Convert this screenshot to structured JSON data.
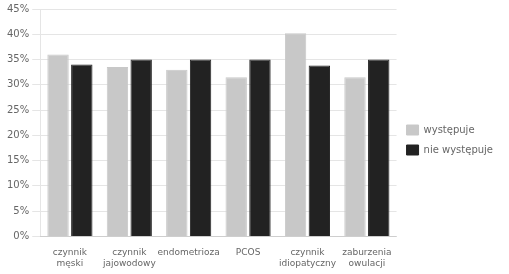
{
  "chart_data": {
    "type": "bar",
    "categories": [
      "czynnik męski",
      "czynnik jajowodowy",
      "endometrioza",
      "PCOS",
      "czynnik idiopatyczny",
      "zaburzenia owulacji"
    ],
    "series": [
      {
        "name": "występuje",
        "color": "#c8c8c8",
        "values": [
          36.0,
          33.5,
          33.0,
          31.5,
          40.2,
          31.5
        ]
      },
      {
        "name": "nie występuje",
        "color": "#222222",
        "values": [
          34.0,
          35.0,
          35.0,
          35.0,
          33.8,
          35.0
        ]
      }
    ],
    "ylim": [
      0,
      45
    ],
    "yticks": [
      {
        "value": 0,
        "label": "0%"
      },
      {
        "value": 5,
        "label": "5%"
      },
      {
        "value": 10,
        "label": "10%"
      },
      {
        "value": 15,
        "label": "15%"
      },
      {
        "value": 20,
        "label": "20%"
      },
      {
        "value": 25,
        "label": "25%"
      },
      {
        "value": 30,
        "label": "30%"
      },
      {
        "value": 35,
        "label": "35%"
      },
      {
        "value": 40,
        "label": "40%"
      },
      {
        "value": 45,
        "label": "45%"
      }
    ],
    "grid": true,
    "legend": "right"
  }
}
